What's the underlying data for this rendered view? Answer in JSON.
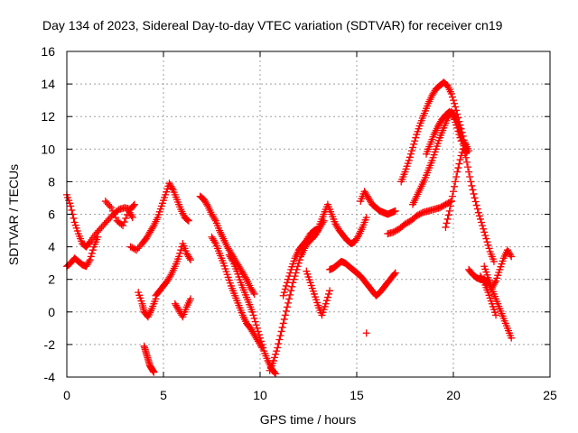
{
  "chart_data": {
    "type": "scatter",
    "title": "Day 134 of 2023, Sidereal Day-to-day VTEC variation (SDTVAR) for receiver cn19",
    "xlabel": "GPS time / hours",
    "ylabel": "SDTVAR / TECUs",
    "xlim": [
      0,
      25
    ],
    "ylim": [
      -4,
      16
    ],
    "xticks": [
      0,
      5,
      10,
      15,
      20,
      25
    ],
    "yticks": [
      -4,
      -2,
      0,
      2,
      4,
      6,
      8,
      10,
      12,
      14,
      16
    ],
    "grid": true,
    "marker": "plus",
    "color": "#ff0000",
    "series": [
      {
        "name": "s1",
        "x": [
          0.0,
          0.2,
          0.4,
          0.6,
          0.8,
          1.0,
          1.2,
          1.5,
          1.8,
          2.1,
          2.4,
          2.7,
          3.0,
          3.3,
          3.5
        ],
        "y": [
          7.2,
          6.5,
          5.5,
          4.8,
          4.2,
          4.0,
          4.3,
          4.8,
          5.2,
          5.6,
          6.0,
          6.3,
          6.4,
          6.3,
          6.6
        ]
      },
      {
        "name": "s2",
        "x": [
          0.0,
          0.2,
          0.4,
          0.6,
          0.8,
          1.0,
          1.2,
          1.4,
          1.6
        ],
        "y": [
          2.8,
          3.0,
          3.3,
          3.1,
          2.9,
          2.8,
          3.2,
          4.0,
          4.6
        ]
      },
      {
        "name": "s3",
        "x": [
          2.0,
          2.3,
          2.6,
          2.9,
          3.2,
          3.4
        ],
        "y": [
          6.8,
          6.4,
          5.6,
          5.3,
          6.2,
          5.8
        ]
      },
      {
        "name": "s4",
        "x": [
          3.3,
          3.6,
          3.9,
          4.1,
          4.3,
          4.5,
          4.7,
          4.9,
          5.1,
          5.3,
          5.5,
          5.7,
          5.9,
          6.1,
          6.3
        ],
        "y": [
          4.0,
          3.8,
          4.2,
          4.5,
          4.9,
          5.3,
          5.8,
          6.5,
          7.2,
          7.9,
          7.5,
          6.9,
          6.3,
          5.8,
          5.6
        ]
      },
      {
        "name": "s5",
        "x": [
          3.7,
          3.9,
          4.0,
          4.2,
          4.4,
          4.6
        ],
        "y": [
          1.2,
          0.5,
          0.0,
          -0.3,
          0.2,
          0.8
        ]
      },
      {
        "name": "s6",
        "x": [
          4.0,
          4.1,
          4.2,
          4.3,
          4.4,
          4.5
        ],
        "y": [
          -2.1,
          -2.5,
          -2.9,
          -3.3,
          -3.5,
          -3.7
        ]
      },
      {
        "name": "s7",
        "x": [
          4.6,
          4.8,
          5.0,
          5.2,
          5.4,
          5.6,
          5.8,
          6.0,
          6.2,
          6.4
        ],
        "y": [
          1.0,
          1.3,
          1.6,
          1.9,
          2.3,
          2.8,
          3.4,
          4.2,
          3.6,
          3.2
        ]
      },
      {
        "name": "s8",
        "x": [
          5.6,
          5.8,
          6.0,
          6.2,
          6.4
        ],
        "y": [
          0.5,
          0.1,
          -0.3,
          0.3,
          0.8
        ]
      },
      {
        "name": "s9",
        "x": [
          6.9,
          7.1,
          7.3,
          7.5,
          7.7,
          7.9,
          8.1,
          8.3,
          8.5,
          8.7,
          8.9,
          9.1,
          9.3,
          9.5,
          9.7
        ],
        "y": [
          7.1,
          6.9,
          6.5,
          6.0,
          5.6,
          5.0,
          4.5,
          4.0,
          3.6,
          3.2,
          2.8,
          2.4,
          2.0,
          1.5,
          1.1
        ]
      },
      {
        "name": "s10",
        "x": [
          7.5,
          7.7,
          7.9,
          8.1,
          8.3,
          8.5,
          8.7,
          8.9,
          9.1,
          9.3,
          9.5,
          9.7,
          9.9,
          10.1
        ],
        "y": [
          4.6,
          4.2,
          3.6,
          3.0,
          2.3,
          1.6,
          1.0,
          0.4,
          -0.2,
          -0.7,
          -1.0,
          -1.4,
          -1.8,
          -2.2
        ]
      },
      {
        "name": "s11",
        "x": [
          8.4,
          8.6,
          8.8,
          9.0,
          9.2,
          9.4,
          9.6,
          9.8,
          10.0,
          10.2,
          10.4,
          10.6,
          10.8
        ],
        "y": [
          3.5,
          3.1,
          2.5,
          1.8,
          1.2,
          0.6,
          0.0,
          -0.8,
          -1.6,
          -2.4,
          -3.0,
          -3.5,
          -3.8
        ]
      },
      {
        "name": "s12",
        "x": [
          10.5,
          10.7,
          10.9,
          11.1,
          11.3,
          11.5,
          11.7,
          11.9,
          12.1,
          12.3,
          12.5,
          12.7,
          12.9,
          13.1,
          13.3
        ],
        "y": [
          -3.6,
          -3.0,
          -2.2,
          -1.2,
          -0.2,
          0.8,
          1.8,
          2.6,
          3.4,
          3.9,
          4.3,
          4.5,
          4.8,
          5.2,
          5.6
        ]
      },
      {
        "name": "s13",
        "x": [
          11.2,
          11.4,
          11.6,
          11.8,
          12.0,
          12.2,
          12.4,
          12.6,
          12.8,
          13.0
        ],
        "y": [
          1.0,
          1.8,
          2.6,
          3.3,
          3.8,
          4.1,
          4.4,
          4.8,
          5.0,
          5.1
        ]
      },
      {
        "name": "s14",
        "x": [
          12.4,
          12.6,
          12.8,
          13.0,
          13.2,
          13.4,
          13.6
        ],
        "y": [
          2.5,
          1.8,
          1.1,
          0.4,
          -0.2,
          0.5,
          1.3
        ]
      },
      {
        "name": "s15",
        "x": [
          12.9,
          13.1,
          13.3,
          13.5,
          13.7,
          13.9,
          14.1,
          14.3,
          14.5,
          14.7,
          14.9,
          15.1,
          15.3,
          15.5
        ],
        "y": [
          4.8,
          5.4,
          6.0,
          6.6,
          6.0,
          5.4,
          5.0,
          4.7,
          4.4,
          4.2,
          4.3,
          4.7,
          5.2,
          5.8
        ]
      },
      {
        "name": "s16",
        "x": [
          13.6,
          13.8,
          14.0,
          14.2,
          14.4,
          14.6,
          14.8,
          15.0,
          15.2,
          15.4,
          15.6,
          15.8,
          16.0,
          16.2,
          16.4,
          16.6,
          16.8,
          17.0
        ],
        "y": [
          2.6,
          2.7,
          2.9,
          3.1,
          3.0,
          2.8,
          2.6,
          2.4,
          2.2,
          1.9,
          1.6,
          1.3,
          1.0,
          1.2,
          1.5,
          1.8,
          2.1,
          2.4
        ]
      },
      {
        "name": "s17",
        "x": [
          15.2,
          15.4,
          15.6,
          15.8,
          16.0,
          16.2,
          16.4,
          16.6,
          16.8,
          17.0
        ],
        "y": [
          6.8,
          7.4,
          7.0,
          6.6,
          6.4,
          6.2,
          6.1,
          6.0,
          6.1,
          6.2
        ]
      },
      {
        "name": "s18",
        "x": [
          16.6,
          16.9,
          17.2,
          17.5,
          17.8,
          18.1,
          18.4,
          18.7,
          19.0,
          19.3,
          19.6,
          19.9
        ],
        "y": [
          4.8,
          4.9,
          5.1,
          5.4,
          5.6,
          5.9,
          6.1,
          6.2,
          6.3,
          6.4,
          6.6,
          6.8
        ]
      },
      {
        "name": "s19",
        "x": [
          17.3,
          17.5,
          17.7,
          17.9,
          18.1,
          18.3,
          18.5,
          18.7,
          18.9,
          19.1,
          19.3,
          19.5,
          19.7,
          19.9,
          20.1,
          20.3,
          20.5,
          20.7
        ],
        "y": [
          8.0,
          8.6,
          9.3,
          10.1,
          10.9,
          11.6,
          12.2,
          12.8,
          13.3,
          13.7,
          13.9,
          14.1,
          13.9,
          13.4,
          12.6,
          11.7,
          10.8,
          9.8
        ]
      },
      {
        "name": "s20",
        "x": [
          17.9,
          18.1,
          18.3,
          18.5,
          18.7,
          18.9,
          19.1,
          19.3,
          19.5,
          19.7,
          19.9,
          20.1,
          20.3,
          20.5,
          20.7,
          20.9,
          21.1,
          21.3,
          21.5,
          21.7,
          21.9,
          22.1
        ],
        "y": [
          6.6,
          7.1,
          7.6,
          8.1,
          8.7,
          9.3,
          10.0,
          10.7,
          11.3,
          11.9,
          12.3,
          12.0,
          11.3,
          10.3,
          9.2,
          8.0,
          7.0,
          6.1,
          5.3,
          4.5,
          3.7,
          3.1
        ]
      },
      {
        "name": "s21",
        "x": [
          18.6,
          18.8,
          19.0,
          19.2,
          19.4,
          19.6,
          19.8,
          20.0,
          20.2,
          20.4
        ],
        "y": [
          9.7,
          10.3,
          10.9,
          11.4,
          11.8,
          12.1,
          12.3,
          12.0,
          11.3,
          10.5
        ]
      },
      {
        "name": "s22",
        "x": [
          19.6,
          19.8,
          20.0,
          20.2,
          20.4,
          20.6,
          20.8
        ],
        "y": [
          5.2,
          6.2,
          7.4,
          8.6,
          9.6,
          10.4,
          9.9
        ]
      },
      {
        "name": "s23",
        "x": [
          20.8,
          21.0,
          21.2,
          21.4,
          21.6,
          21.8,
          22.0,
          22.2,
          22.4,
          22.6,
          22.8,
          23.0
        ],
        "y": [
          2.6,
          2.3,
          2.1,
          2.0,
          2.0,
          1.8,
          1.4,
          0.8,
          0.2,
          -0.4,
          -1.0,
          -1.6
        ]
      },
      {
        "name": "s24",
        "x": [
          21.6,
          21.8,
          22.0,
          22.2,
          22.4,
          22.6,
          22.8,
          23.0
        ],
        "y": [
          2.8,
          2.1,
          1.5,
          1.9,
          2.6,
          3.3,
          3.8,
          3.4
        ]
      },
      {
        "name": "s25",
        "x": [
          21.4,
          21.6,
          21.8,
          22.0,
          22.2
        ],
        "y": [
          2.2,
          1.8,
          1.2,
          0.5,
          -0.2
        ]
      },
      {
        "name": "s26",
        "x": [
          15.5
        ],
        "y": [
          -1.3
        ]
      }
    ]
  }
}
